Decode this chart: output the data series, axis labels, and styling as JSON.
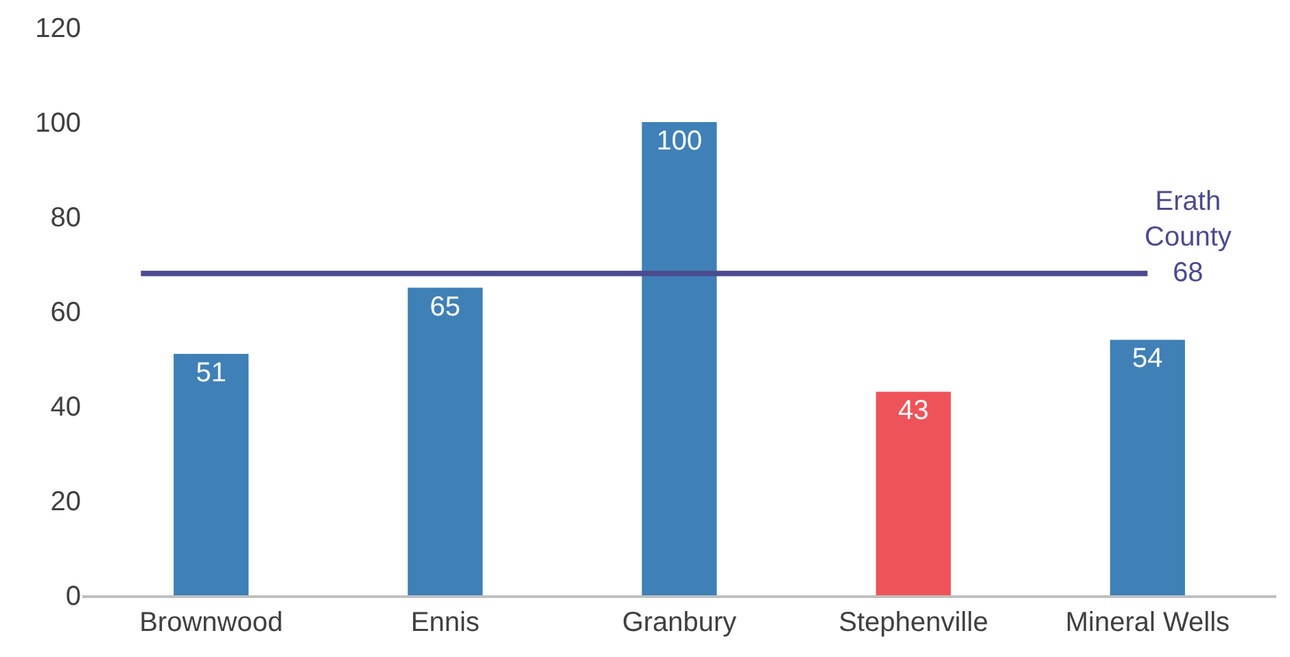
{
  "chart_data": {
    "type": "bar",
    "categories": [
      "Brownwood",
      "Ennis",
      "Granbury",
      "Stephenville",
      "Mineral Wells"
    ],
    "values": [
      51,
      65,
      100,
      43,
      54
    ],
    "colors": [
      "#3f80b7",
      "#3f80b7",
      "#3f80b7",
      "#ef535a",
      "#3f80b7"
    ],
    "ylim": [
      0,
      120
    ],
    "yticks": [
      0,
      20,
      40,
      60,
      80,
      100,
      120
    ],
    "data_labels": true,
    "ref_lines": [
      {
        "axis": "y",
        "value": 68,
        "label": "Erath County 68",
        "color": "#4b4b8f"
      }
    ]
  }
}
